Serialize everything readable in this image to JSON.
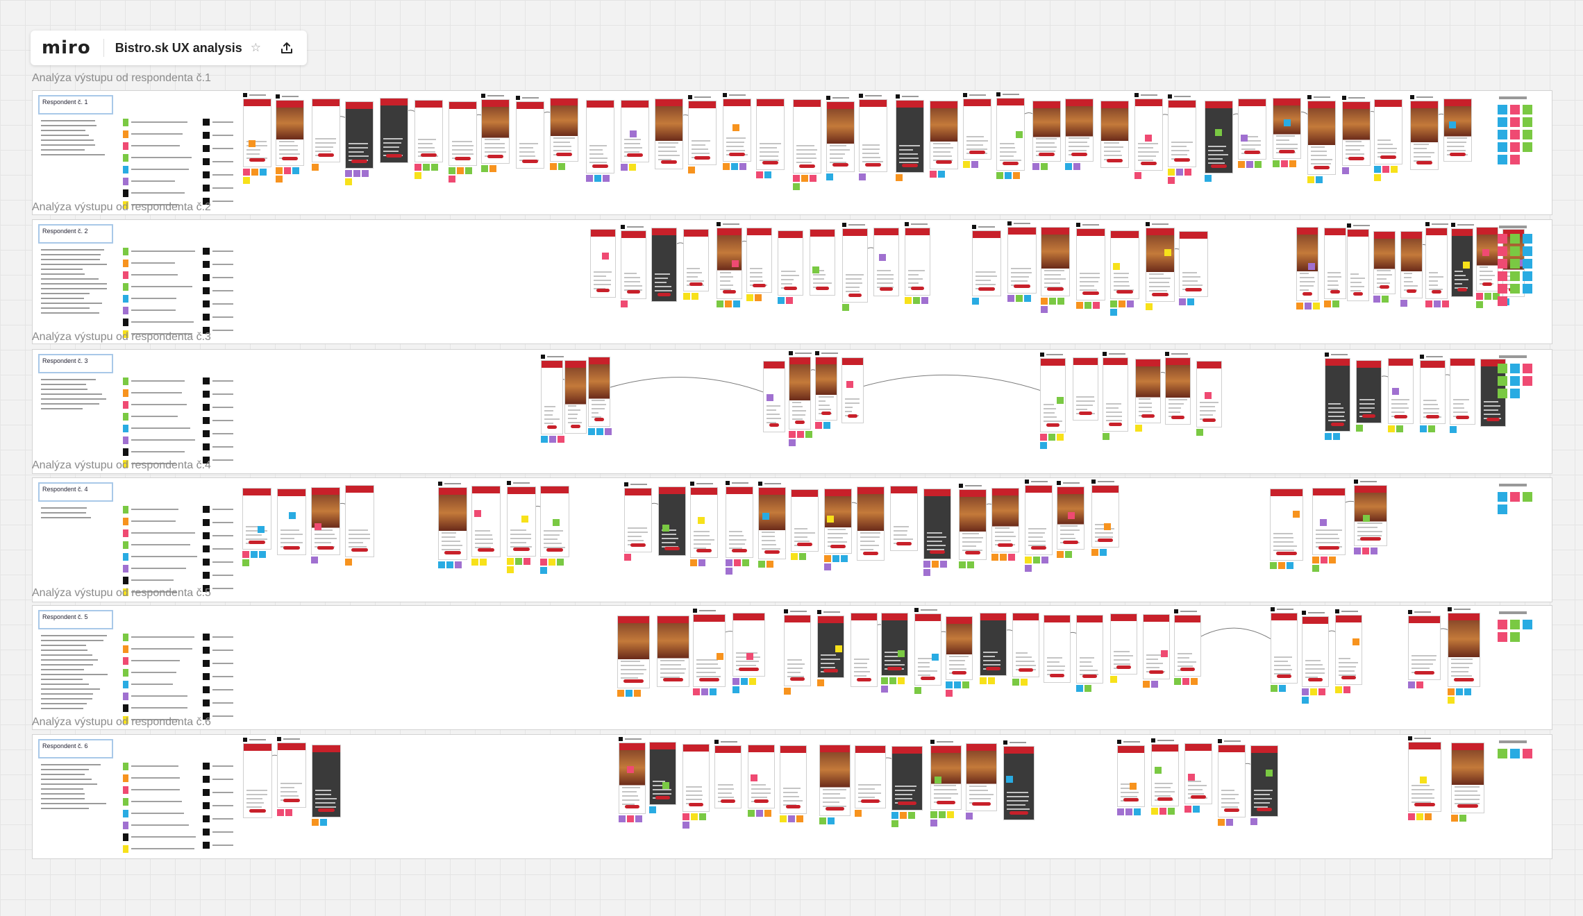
{
  "toolbar": {
    "logo": "miro",
    "board_title": "Bistro.sk UX analysis",
    "star_icon": "star-icon",
    "export_icon": "upload-icon"
  },
  "sections": [
    {
      "label": "Analýza výstupu od respondenta č.1",
      "respondent": "Respondent č. 1"
    },
    {
      "label": "Analýza výstupu od respondenta č.2",
      "respondent": "Respondent č. 2"
    },
    {
      "label": "Analýza výstupu od respondenta č.3",
      "respondent": "Respondent č. 3"
    },
    {
      "label": "Analýza výstupu od respondenta č.4",
      "respondent": "Respondent č. 4"
    },
    {
      "label": "Analýza výstupu od respondenta č.5",
      "respondent": "Respondent č. 5"
    },
    {
      "label": "Analýza výstupu od respondenta č.6",
      "respondent": "Respondent č. 6"
    }
  ],
  "colors": {
    "brand_red": "#c8202a",
    "sticky_green": "#7ac943",
    "sticky_pink": "#ef4a72",
    "sticky_orange": "#f7931e",
    "sticky_blue": "#29abe2",
    "sticky_yellow": "#f7e11a",
    "sticky_purple": "#a070d0",
    "sticky_black": "#111111"
  }
}
